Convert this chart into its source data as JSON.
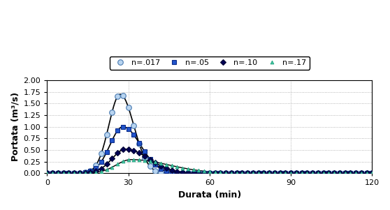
{
  "title": "",
  "xlabel": "Durata (min)",
  "ylabel": "Portata (m³/s)",
  "xlim": [
    0,
    120
  ],
  "ylim": [
    0,
    2
  ],
  "xticks": [
    0,
    30,
    60,
    90,
    120
  ],
  "yticks": [
    0,
    0.25,
    0.5,
    0.75,
    1.0,
    1.25,
    1.5,
    1.75,
    2.0
  ],
  "series": [
    {
      "label": "n=.017",
      "marker": "o",
      "markerfacecolor": "#b8d4f0",
      "markeredgecolor": "#4a7ab0",
      "linecolor": "#000000",
      "peak": 1.7,
      "peak_t": 27,
      "sigma_rise": 4.2,
      "sigma_fall": 5.0,
      "markersize": 5.5,
      "markeredgewidth": 0.8,
      "linewidth": 1.2
    },
    {
      "label": "n=.05",
      "marker": "s",
      "markerfacecolor": "#2255cc",
      "markeredgecolor": "#0a2a88",
      "linecolor": "#000000",
      "peak": 1.0,
      "peak_t": 28,
      "sigma_rise": 4.8,
      "sigma_fall": 6.5,
      "markersize": 5.0,
      "markeredgewidth": 0.8,
      "linewidth": 1.2
    },
    {
      "label": "n=.10",
      "marker": "D",
      "markerfacecolor": "#000055",
      "markeredgecolor": "#000033",
      "linecolor": "#000000",
      "peak": 0.52,
      "peak_t": 29,
      "sigma_rise": 5.0,
      "sigma_fall": 8.5,
      "markersize": 4.0,
      "markeredgewidth": 0.8,
      "linewidth": 1.2
    },
    {
      "label": "n=.17",
      "marker": "^",
      "markerfacecolor": "#40c8a0",
      "markeredgecolor": "#20a080",
      "linecolor": "#000000",
      "peak": 0.295,
      "peak_t": 31,
      "sigma_rise": 5.5,
      "sigma_fall": 14.0,
      "markersize": 3.5,
      "markeredgewidth": 0.6,
      "linewidth": 1.0
    }
  ],
  "background_color": "#ffffff",
  "grid_color": "#999999",
  "figsize": [
    5.58,
    3.01
  ],
  "dpi": 100
}
